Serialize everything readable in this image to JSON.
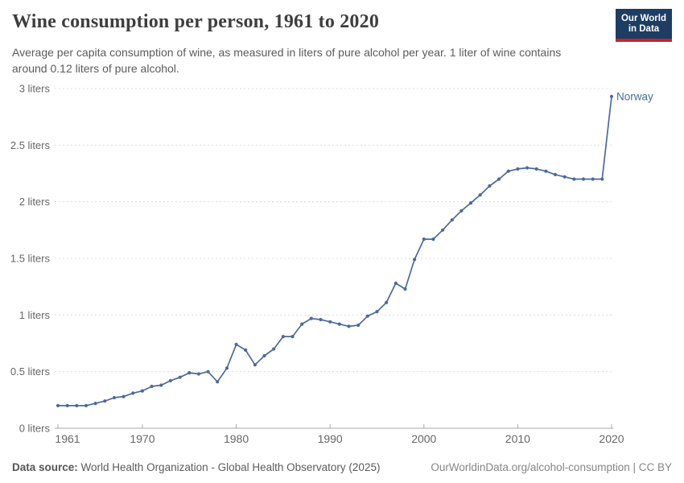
{
  "header": {
    "title": "Wine consumption per person, 1961 to 2020",
    "subtitle": "Average per capita consumption of wine, as measured in liters of pure alcohol per year. 1 liter of wine contains around 0.12 liters of pure alcohol.",
    "logo": {
      "line1": "Our World",
      "line2": "in Data",
      "bg_color": "#1d3d63",
      "accent_color": "#c0272d"
    }
  },
  "chart_data": {
    "type": "line",
    "title": "Wine consumption per person, 1961 to 2020",
    "xlabel": "",
    "ylabel": "",
    "xlim": [
      1961,
      2020
    ],
    "ylim": [
      0,
      3
    ],
    "grid": "horizontal-dashed",
    "legend_position": "end-of-line",
    "x_ticks": [
      1961,
      1970,
      1980,
      1990,
      2000,
      2010,
      2020
    ],
    "y_ticks": [
      0,
      0.5,
      1,
      1.5,
      2,
      2.5,
      3
    ],
    "y_tick_labels": [
      "0 liters",
      "0.5 liters",
      "1 liters",
      "1.5 liters",
      "2 liters",
      "2.5 liters",
      "3 liters"
    ],
    "end_label": "Norway",
    "series": [
      {
        "name": "Norway",
        "color": "#4C6A9C",
        "x": [
          1961,
          1962,
          1963,
          1964,
          1965,
          1966,
          1967,
          1968,
          1969,
          1970,
          1971,
          1972,
          1973,
          1974,
          1975,
          1976,
          1977,
          1978,
          1979,
          1980,
          1981,
          1982,
          1983,
          1984,
          1985,
          1986,
          1987,
          1988,
          1989,
          1990,
          1991,
          1992,
          1993,
          1994,
          1995,
          1996,
          1997,
          1998,
          1999,
          2000,
          2001,
          2002,
          2003,
          2004,
          2005,
          2006,
          2007,
          2008,
          2009,
          2010,
          2011,
          2012,
          2013,
          2014,
          2015,
          2016,
          2017,
          2018,
          2019,
          2020
        ],
        "values": [
          0.2,
          0.2,
          0.2,
          0.2,
          0.22,
          0.24,
          0.27,
          0.28,
          0.31,
          0.33,
          0.37,
          0.38,
          0.42,
          0.45,
          0.49,
          0.48,
          0.5,
          0.41,
          0.53,
          0.74,
          0.69,
          0.56,
          0.64,
          0.7,
          0.81,
          0.81,
          0.92,
          0.97,
          0.96,
          0.94,
          0.92,
          0.9,
          0.91,
          0.99,
          1.03,
          1.11,
          1.28,
          1.23,
          1.49,
          1.67,
          1.67,
          1.75,
          1.84,
          1.92,
          1.99,
          2.06,
          2.14,
          2.2,
          2.27,
          2.29,
          2.3,
          2.29,
          2.27,
          2.24,
          2.22,
          2.2,
          2.2,
          2.2,
          2.2,
          2.93
        ]
      }
    ],
    "axis_color": "#a8a8a8",
    "gridline_color": "#dcdcdc"
  },
  "footer": {
    "source_label": "Data source:",
    "source_text": " World Health Organization - Global Health Observatory (2025)",
    "credit": "OurWorldinData.org/alcohol-consumption | CC BY"
  }
}
